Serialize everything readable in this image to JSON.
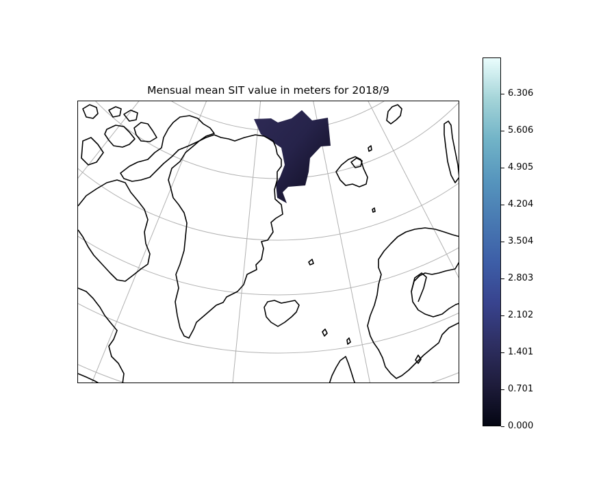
{
  "title": "Mensual mean SIT value in meters for 2018/9",
  "map": {
    "projection": "polar stereographic (North Atlantic / Greenland sector)",
    "features": [
      "coastlines",
      "graticule",
      "sea-ice-thickness-field"
    ],
    "landmasses": [
      "Greenland",
      "Canadian Arctic Archipelago",
      "Iceland",
      "Svalbard",
      "Scandinavia"
    ],
    "sea_ice_region": "Fram Strait / Greenland Sea",
    "sea_ice_color_range": [
      "#0d0a1c",
      "#2e2a55"
    ]
  },
  "colorbar": {
    "colormap": "ice",
    "min": 0.0,
    "max": 7.0,
    "ticks": [
      "0.000",
      "0.701",
      "1.401",
      "2.102",
      "2.803",
      "3.504",
      "4.204",
      "4.905",
      "5.606",
      "6.306"
    ],
    "colors": [
      "#040613",
      "#1e1c3b",
      "#2e2f62",
      "#38438e",
      "#3d5ea7",
      "#4879b2",
      "#5695bd",
      "#71b3c7",
      "#a4d4d8",
      "#eafdfd"
    ]
  }
}
